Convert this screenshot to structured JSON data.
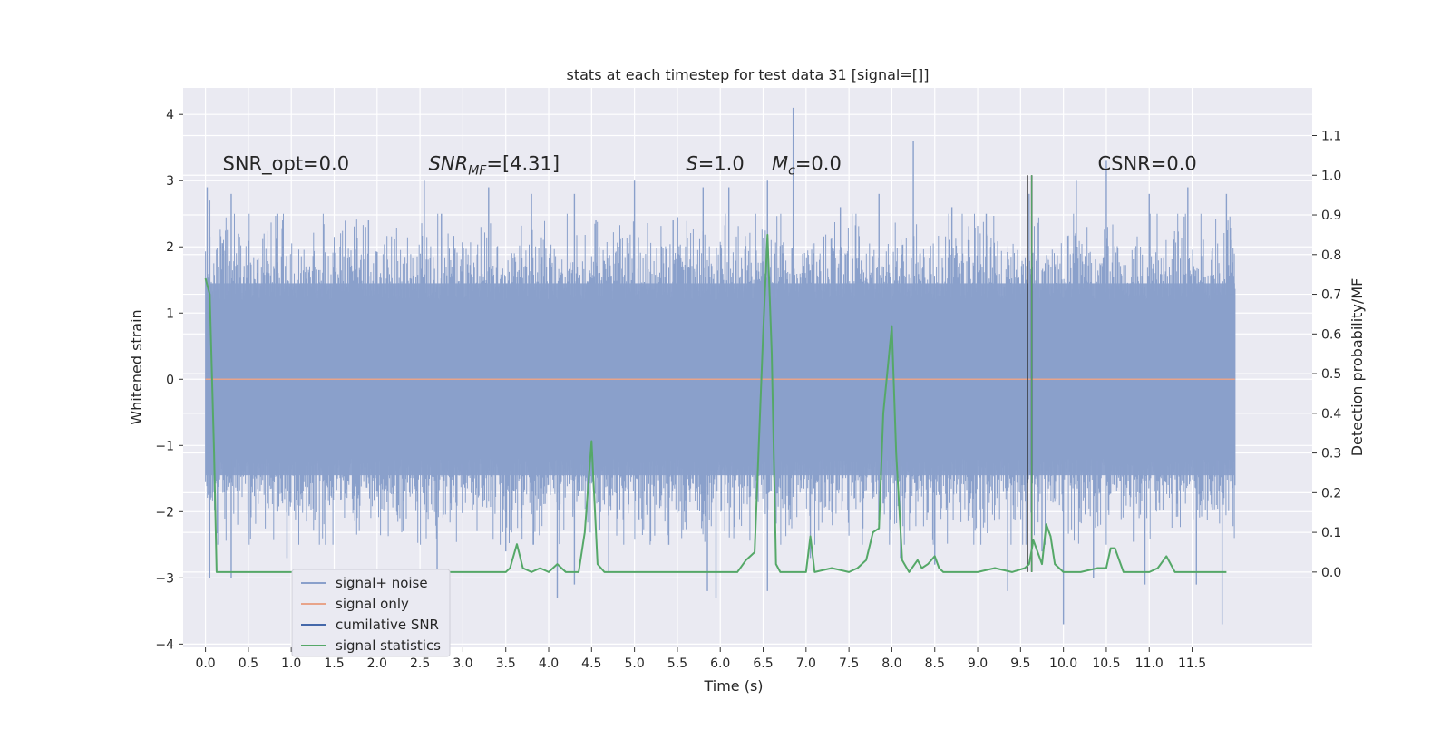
{
  "chart_data": {
    "type": "line",
    "title": "stats at each timestep for test data 31 [signal=[]]",
    "xlabel": "Time (s)",
    "ylabel": "Whitened strain",
    "y2label": "Detection probability/MF",
    "xlim": [
      -0.26,
      12.9
    ],
    "ylim": [
      -4.05,
      4.4
    ],
    "y2lim": [
      -0.19,
      1.22
    ],
    "x_ticks": [
      0.0,
      0.5,
      1.0,
      1.5,
      2.0,
      2.5,
      3.0,
      3.5,
      4.0,
      4.5,
      5.0,
      5.5,
      6.0,
      6.5,
      7.0,
      7.5,
      8.0,
      8.5,
      9.0,
      9.5,
      10.0,
      10.5,
      11.0,
      11.5
    ],
    "x_tick_labels": [
      "0.0",
      "0.5",
      "1.0",
      "1.5",
      "2.0",
      "2.5",
      "3.0",
      "3.5",
      "4.0",
      "4.5",
      "5.0",
      "5.5",
      "6.0",
      "6.5",
      "7.0",
      "7.5",
      "8.0",
      "8.5",
      "9.0",
      "9.5",
      "10.0",
      "10.5",
      "11.0",
      "11.5"
    ],
    "y_ticks": [
      -4,
      -3,
      -2,
      -1,
      0,
      1,
      2,
      3,
      4
    ],
    "y_tick_labels": [
      "−4",
      "−3",
      "−2",
      "−1",
      "0",
      "1",
      "2",
      "3",
      "4"
    ],
    "y2_ticks": [
      0.0,
      0.1,
      0.2,
      0.3,
      0.4,
      0.5,
      0.6,
      0.7,
      0.8,
      0.9,
      1.0,
      1.1
    ],
    "y2_tick_labels": [
      "0.0",
      "0.1",
      "0.2",
      "0.3",
      "0.4",
      "0.5",
      "0.6",
      "0.7",
      "0.8",
      "0.9",
      "1.0",
      "1.1"
    ],
    "grid": true,
    "legend_position": "lower-left",
    "legend": [
      {
        "label": "signal+ noise",
        "color": "#8aa0cb"
      },
      {
        "label": "signal only",
        "color": "#e8a48a"
      },
      {
        "label": "cumilative SNR",
        "color": "#4468aa"
      },
      {
        "label": "signal statistics",
        "color": "#55a868"
      }
    ],
    "annotations": [
      {
        "text": "SNR_opt=0.0",
        "x": 0.2,
        "y": 3.27
      },
      {
        "text": "SNR_MF=[4.31]",
        "x": 2.6,
        "y": 3.27
      },
      {
        "text": "S=1.0",
        "x": 5.6,
        "y": 3.27
      },
      {
        "text": "M_c=0.0",
        "x": 6.6,
        "y": 3.27
      },
      {
        "text": "CSNR=0.0",
        "x": 10.4,
        "y": 3.27
      }
    ],
    "series": [
      {
        "name": "signal+ noise",
        "axis": "left",
        "color": "#8aa0cb",
        "x_range": [
          0.0,
          12.0
        ],
        "core_band": [
          -1.45,
          1.45
        ],
        "peaks_up": [
          [
            0.02,
            2.9
          ],
          [
            0.05,
            2.7
          ],
          [
            0.3,
            2.8
          ],
          [
            0.9,
            2.4
          ],
          [
            1.9,
            2.4
          ],
          [
            2.55,
            3.0
          ],
          [
            2.75,
            2.5
          ],
          [
            3.3,
            2.9
          ],
          [
            3.8,
            2.8
          ],
          [
            4.3,
            2.8
          ],
          [
            4.55,
            2.4
          ],
          [
            5.0,
            3.0
          ],
          [
            5.45,
            2.4
          ],
          [
            5.8,
            2.9
          ],
          [
            6.1,
            2.9
          ],
          [
            6.55,
            3.0
          ],
          [
            6.85,
            4.1
          ],
          [
            7.4,
            2.6
          ],
          [
            7.85,
            2.8
          ],
          [
            8.25,
            3.6
          ],
          [
            8.7,
            2.6
          ],
          [
            9.1,
            2.5
          ],
          [
            9.6,
            2.8
          ],
          [
            10.15,
            3.0
          ],
          [
            10.5,
            3.3
          ],
          [
            11.0,
            2.8
          ],
          [
            11.45,
            2.9
          ],
          [
            11.9,
            2.8
          ]
        ],
        "peaks_down": [
          [
            0.05,
            -3.0
          ],
          [
            0.3,
            -3.0
          ],
          [
            0.95,
            -2.7
          ],
          [
            1.4,
            -2.5
          ],
          [
            2.7,
            -2.9
          ],
          [
            3.5,
            -2.6
          ],
          [
            4.1,
            -3.3
          ],
          [
            4.3,
            -3.1
          ],
          [
            4.7,
            -2.9
          ],
          [
            5.4,
            -2.5
          ],
          [
            5.85,
            -3.2
          ],
          [
            5.95,
            -3.3
          ],
          [
            6.55,
            -3.2
          ],
          [
            7.05,
            -2.7
          ],
          [
            8.1,
            -2.7
          ],
          [
            8.5,
            -2.8
          ],
          [
            9.35,
            -3.2
          ],
          [
            9.75,
            -2.6
          ],
          [
            10.0,
            -3.7
          ],
          [
            10.35,
            -3.0
          ],
          [
            10.95,
            -3.1
          ],
          [
            11.55,
            -3.1
          ],
          [
            11.85,
            -3.7
          ]
        ]
      },
      {
        "name": "signal only",
        "axis": "left",
        "color": "#e8a48a",
        "x": [
          0.0,
          12.0
        ],
        "y": [
          0.0,
          0.0
        ]
      },
      {
        "name": "cumilative SNR",
        "axis": "right",
        "color": "#4468aa",
        "x": [
          9.58,
          9.63
        ],
        "y": [
          1.0,
          1.0
        ]
      },
      {
        "name": "signal statistics",
        "axis": "right",
        "color": "#55a868",
        "x": [
          0.0,
          0.05,
          0.1,
          0.13,
          0.16,
          0.5,
          1.0,
          2.0,
          3.0,
          3.5,
          3.55,
          3.63,
          3.7,
          3.8,
          3.9,
          4.0,
          4.1,
          4.2,
          4.35,
          4.42,
          4.5,
          4.57,
          4.65,
          5.0,
          5.5,
          6.0,
          6.2,
          6.3,
          6.4,
          6.5,
          6.55,
          6.6,
          6.65,
          6.7,
          6.8,
          7.0,
          7.05,
          7.1,
          7.3,
          7.5,
          7.6,
          7.7,
          7.78,
          7.85,
          7.9,
          8.0,
          8.05,
          8.12,
          8.2,
          8.3,
          8.35,
          8.42,
          8.5,
          8.55,
          8.6,
          9.0,
          9.2,
          9.4,
          9.55,
          9.6,
          9.65,
          9.75,
          9.8,
          9.85,
          9.9,
          10.0,
          10.2,
          10.4,
          10.5,
          10.55,
          10.6,
          10.7,
          11.0,
          11.1,
          11.2,
          11.3,
          11.5,
          11.9
        ],
        "y": [
          0.74,
          0.7,
          0.3,
          0.0,
          0.0,
          0.0,
          0.0,
          0.0,
          0.0,
          0.0,
          0.01,
          0.07,
          0.01,
          0.0,
          0.01,
          0.0,
          0.02,
          0.0,
          0.0,
          0.1,
          0.33,
          0.02,
          0.0,
          0.0,
          0.0,
          0.0,
          0.0,
          0.03,
          0.05,
          0.6,
          0.85,
          0.55,
          0.02,
          0.0,
          0.0,
          0.0,
          0.09,
          0.0,
          0.01,
          0.0,
          0.01,
          0.03,
          0.1,
          0.11,
          0.4,
          0.62,
          0.3,
          0.03,
          0.0,
          0.03,
          0.01,
          0.02,
          0.04,
          0.01,
          0.0,
          0.0,
          0.01,
          0.0,
          0.01,
          0.02,
          0.08,
          0.02,
          0.12,
          0.09,
          0.02,
          0.0,
          0.0,
          0.01,
          0.01,
          0.06,
          0.06,
          0.0,
          0.0,
          0.01,
          0.04,
          0.0,
          0.0,
          0.0
        ]
      }
    ]
  }
}
